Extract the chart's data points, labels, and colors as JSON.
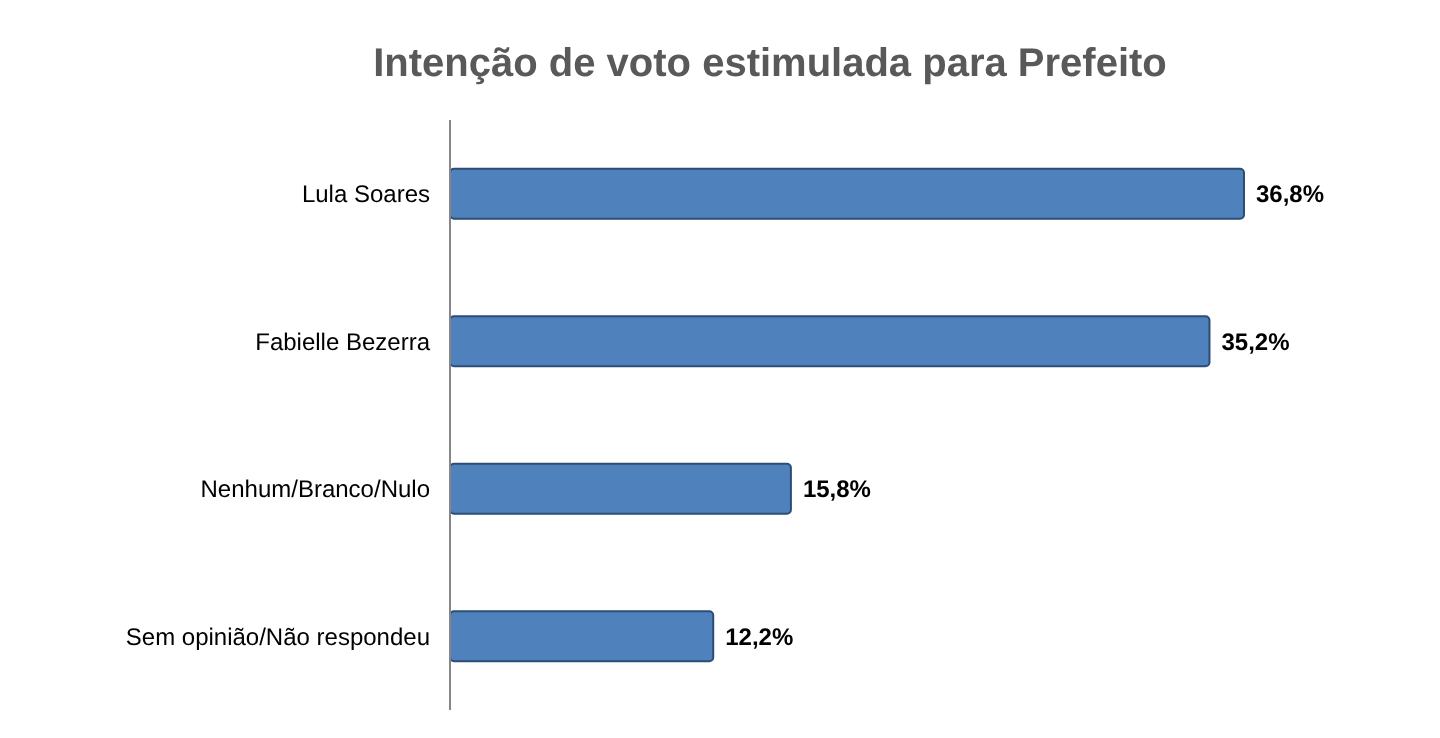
{
  "chart_data": {
    "type": "bar",
    "orientation": "horizontal",
    "title": "Intenção de voto estimulada para Prefeito",
    "categories": [
      "Lula Soares",
      "Fabielle Bezerra",
      "Nenhum/Branco/Nulo",
      "Sem opinião/Não respondeu"
    ],
    "values": [
      36.8,
      35.2,
      15.8,
      12.2
    ],
    "value_labels": [
      "36,8%",
      "35,2%",
      "15,8%",
      "12,2%"
    ],
    "color": "#4f81bd"
  }
}
